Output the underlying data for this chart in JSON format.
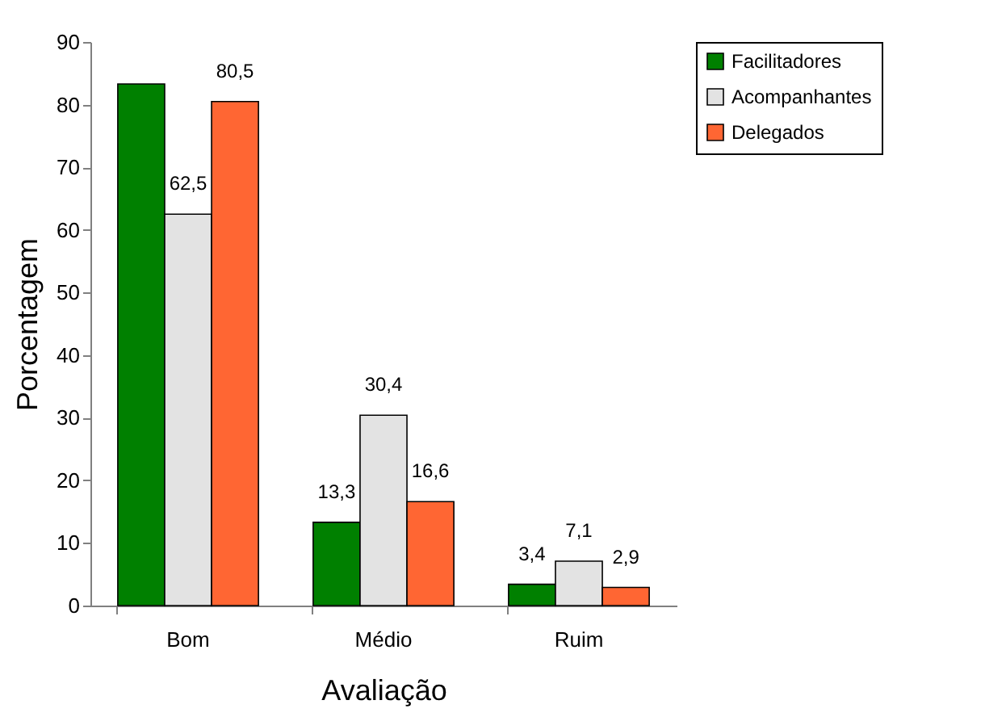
{
  "chart_data": {
    "type": "bar",
    "xlabel": "Avaliação",
    "ylabel": "Porcentagem",
    "categories": [
      "Bom",
      "Médio",
      "Ruim"
    ],
    "series": [
      {
        "name": "Facilitadores",
        "color": "#008000",
        "values": [
          83.3,
          13.3,
          3.4
        ],
        "value_labels": [
          null,
          "13,3",
          "3,4"
        ]
      },
      {
        "name": "Acompanhantes",
        "color": "#e3e3e3",
        "values": [
          62.5,
          30.4,
          7.1
        ],
        "value_labels": [
          "62,5",
          "30,4",
          "7,1"
        ]
      },
      {
        "name": "Delegados",
        "color": "#ff6633",
        "values": [
          80.5,
          16.6,
          2.9
        ],
        "value_labels": [
          "80,5",
          "16,6",
          "2,9"
        ]
      }
    ],
    "ylim": [
      0,
      90
    ],
    "yticks": [
      0,
      10,
      20,
      30,
      40,
      50,
      60,
      70,
      80,
      90
    ],
    "grid": false,
    "legend": "right"
  }
}
